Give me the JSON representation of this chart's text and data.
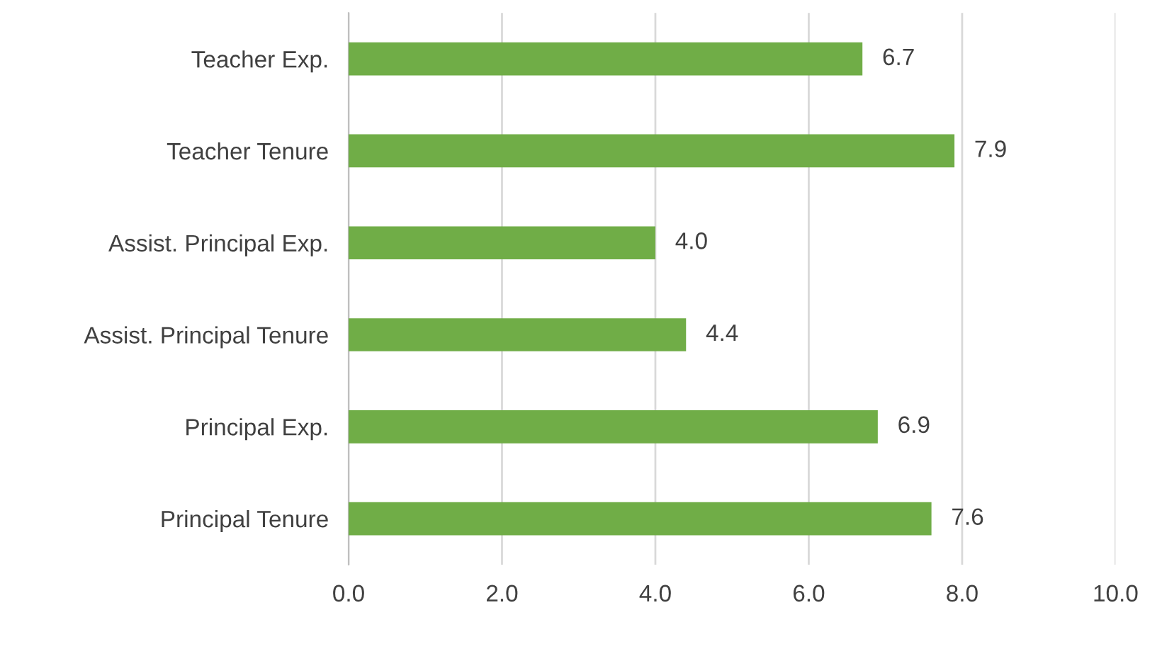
{
  "chart_data": {
    "type": "bar",
    "orientation": "horizontal",
    "categories": [
      "Teacher Exp.",
      "Teacher Tenure",
      "Assist. Principal Exp.",
      "Assist. Principal Tenure",
      "Principal Exp.",
      "Principal Tenure"
    ],
    "values": [
      6.7,
      7.9,
      4.0,
      4.4,
      6.9,
      7.6
    ],
    "color": "#70ad47",
    "value_labels": [
      "6.7",
      "7.9",
      "4.0",
      "4.4",
      "6.9",
      "7.6"
    ],
    "xlim": [
      0,
      10
    ],
    "xticks": [
      {
        "value": 0,
        "label": "0.0"
      },
      {
        "value": 2,
        "label": "2.0"
      },
      {
        "value": 4,
        "label": "4.0"
      },
      {
        "value": 6,
        "label": "6.0"
      },
      {
        "value": 8,
        "label": "8.0"
      },
      {
        "value": 10,
        "label": "10.0"
      }
    ],
    "grid": "x",
    "legend": false
  }
}
